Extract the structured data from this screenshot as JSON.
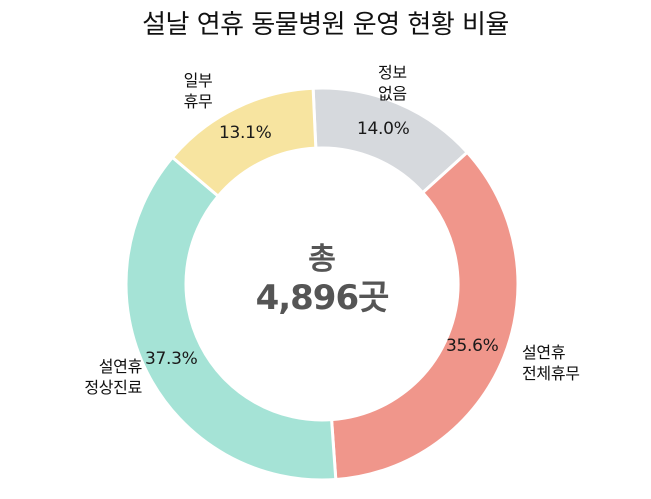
{
  "chart_data": {
    "type": "pie",
    "subtype": "donut",
    "title": "설날 연휴 동물병원 운영 현황 비율",
    "center_label": {
      "line1": "총",
      "line2": "4,896곳"
    },
    "total": 4896,
    "categories": [
      "정보없음",
      "설연휴 전체휴무",
      "설연휴 정상진료",
      "일부휴무"
    ],
    "values": [
      14.0,
      35.6,
      37.3,
      13.1
    ],
    "unit": "%",
    "colors": [
      "#d6d9dd",
      "#f0968b",
      "#a5e3d6",
      "#f7e4a0"
    ],
    "start_angle_deg": -2.6,
    "direction": "clockwise",
    "legend": "none (direct labels)"
  },
  "title": "설날 연휴 동물병원 운영 현황 비율",
  "center": {
    "line1": "총",
    "line2": "4,896곳"
  },
  "slices": [
    {
      "label_line1": "정보",
      "label_line2": "없음",
      "pct": "14.0%"
    },
    {
      "label_line1": "설연휴",
      "label_line2": "전체휴무",
      "pct": "35.6%"
    },
    {
      "label_line1": "설연휴",
      "label_line2": "정상진료",
      "pct": "37.3%"
    },
    {
      "label_line1": "일부",
      "label_line2": "휴무",
      "pct": "13.1%"
    }
  ]
}
